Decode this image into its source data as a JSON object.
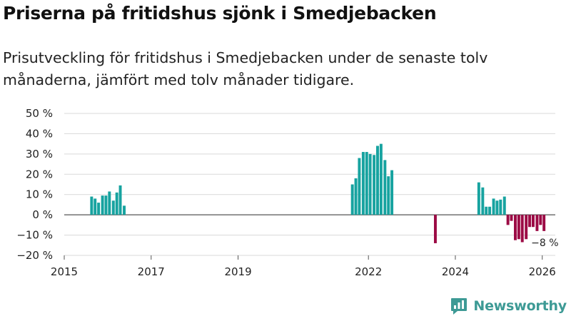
{
  "title": "Priserna på fritidshus sjönk i Smedjebacken",
  "subtitle": "Prisutveckling för fritidshus i Smedjebacken under de senaste tolv månaderna, jämfört med tolv månader tidigare.",
  "brand": {
    "name": "Newsworthy",
    "icon": "newsworthy-logo-icon"
  },
  "colors": {
    "positive": "#17a3a0",
    "negative": "#9c0b45",
    "grid": "#d9d9d9",
    "zero": "#555555",
    "text": "#222222",
    "brand": "#3d9a95"
  },
  "chart_data": {
    "type": "bar",
    "title": "Priserna på fritidshus sjönk i Smedjebacken",
    "xlabel": "",
    "ylabel": "",
    "ylim": [
      -20,
      50
    ],
    "xlim": [
      2015,
      2026.3
    ],
    "y_ticks": [
      -20,
      -10,
      0,
      10,
      20,
      30,
      40,
      50
    ],
    "y_tick_labels": [
      "−20 %",
      "−10 %",
      "0 %",
      "10 %",
      "20 %",
      "30 %",
      "40 %",
      "50 %"
    ],
    "x_ticks": [
      2015,
      2017,
      2019,
      2022,
      2024,
      2026
    ],
    "x_tick_labels": [
      "2015",
      "2017",
      "2019",
      "2022",
      "2024",
      "2026"
    ],
    "series": [
      {
        "name": "Prisutveckling",
        "unit": "%",
        "points": [
          {
            "x": 2015.63,
            "y": 9
          },
          {
            "x": 2015.71,
            "y": 8
          },
          {
            "x": 2015.79,
            "y": 6
          },
          {
            "x": 2015.88,
            "y": 9.5
          },
          {
            "x": 2015.96,
            "y": 9.5
          },
          {
            "x": 2016.04,
            "y": 11.5
          },
          {
            "x": 2016.13,
            "y": 7
          },
          {
            "x": 2016.21,
            "y": 11
          },
          {
            "x": 2016.29,
            "y": 14.5
          },
          {
            "x": 2016.38,
            "y": 4.5
          },
          {
            "x": 2021.63,
            "y": 15
          },
          {
            "x": 2021.71,
            "y": 18
          },
          {
            "x": 2021.79,
            "y": 28
          },
          {
            "x": 2021.88,
            "y": 31
          },
          {
            "x": 2021.96,
            "y": 31
          },
          {
            "x": 2022.04,
            "y": 30
          },
          {
            "x": 2022.13,
            "y": 29.5
          },
          {
            "x": 2022.21,
            "y": 34
          },
          {
            "x": 2022.29,
            "y": 35
          },
          {
            "x": 2022.38,
            "y": 27
          },
          {
            "x": 2022.46,
            "y": 19
          },
          {
            "x": 2022.54,
            "y": 22
          },
          {
            "x": 2023.54,
            "y": -14
          },
          {
            "x": 2024.54,
            "y": 16
          },
          {
            "x": 2024.63,
            "y": 13.5
          },
          {
            "x": 2024.71,
            "y": 4
          },
          {
            "x": 2024.79,
            "y": 4
          },
          {
            "x": 2024.88,
            "y": 8
          },
          {
            "x": 2024.96,
            "y": 7
          },
          {
            "x": 2025.04,
            "y": 7.5
          },
          {
            "x": 2025.13,
            "y": 9
          },
          {
            "x": 2025.21,
            "y": -5
          },
          {
            "x": 2025.29,
            "y": -3
          },
          {
            "x": 2025.38,
            "y": -12.5
          },
          {
            "x": 2025.46,
            "y": -12
          },
          {
            "x": 2025.54,
            "y": -13.5
          },
          {
            "x": 2025.63,
            "y": -12
          },
          {
            "x": 2025.71,
            "y": -6
          },
          {
            "x": 2025.79,
            "y": -6
          },
          {
            "x": 2025.88,
            "y": -8
          },
          {
            "x": 2025.96,
            "y": -5
          },
          {
            "x": 2026.04,
            "y": -8
          }
        ]
      }
    ],
    "annotations": [
      {
        "x": 2026.04,
        "y": -8,
        "text": "−8 %"
      }
    ]
  }
}
